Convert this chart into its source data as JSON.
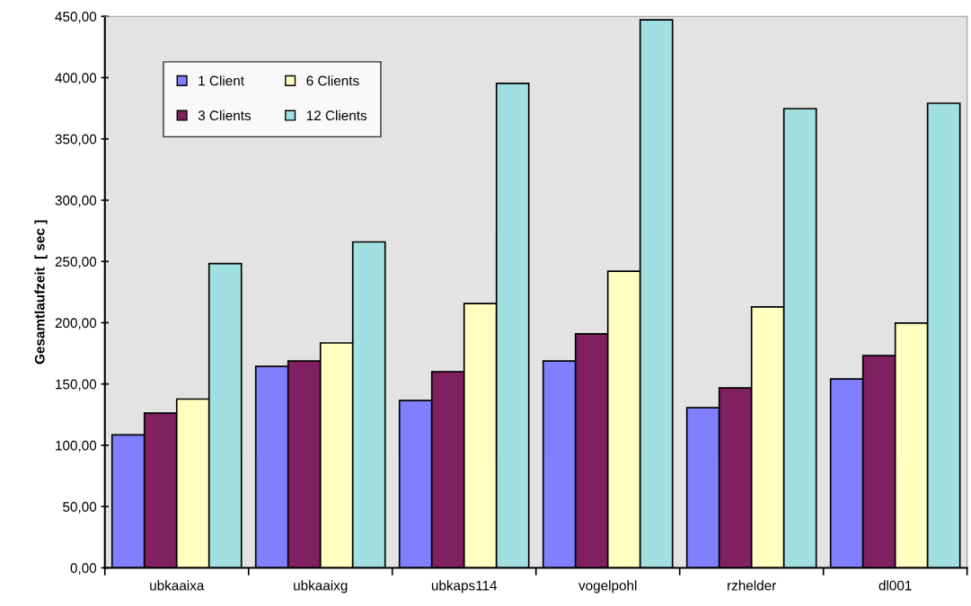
{
  "chart_data": {
    "type": "bar",
    "ylabel": "Gesamtlaufzeit  [ sec ]",
    "categories": [
      "ubkaaixa",
      "ubkaaixg",
      "ubkaps114",
      "vogelpohl",
      "rzhelder",
      "dl001"
    ],
    "series": [
      {
        "name": "1 Client",
        "color": "#8080ff",
        "values": [
          108.5,
          164.4,
          136.5,
          168.8,
          130.6,
          154.1
        ]
      },
      {
        "name": "3 Clients",
        "color": "#802060",
        "values": [
          126.3,
          168.8,
          160.0,
          190.9,
          146.8,
          173.2
        ]
      },
      {
        "name": "6 Clients",
        "color": "#ffffc0",
        "values": [
          137.7,
          183.5,
          215.7,
          242.0,
          212.9,
          199.7
        ]
      },
      {
        "name": "12 Clients",
        "color": "#a0e0e0",
        "values": [
          248.2,
          265.9,
          395.3,
          447.1,
          374.7,
          379.1
        ]
      }
    ],
    "ylim": [
      0,
      450
    ],
    "yticks": [
      {
        "value": 0,
        "label": "0,00"
      },
      {
        "value": 50,
        "label": "50,00"
      },
      {
        "value": 100,
        "label": "100,00"
      },
      {
        "value": 150,
        "label": "150,00"
      },
      {
        "value": 200,
        "label": "200,00"
      },
      {
        "value": 250,
        "label": "250,00"
      },
      {
        "value": 300,
        "label": "300,00"
      },
      {
        "value": 350,
        "label": "350,00"
      },
      {
        "value": 400,
        "label": "400,00"
      },
      {
        "value": 450,
        "label": "450,00"
      }
    ],
    "grid": false,
    "legend": "top left"
  }
}
